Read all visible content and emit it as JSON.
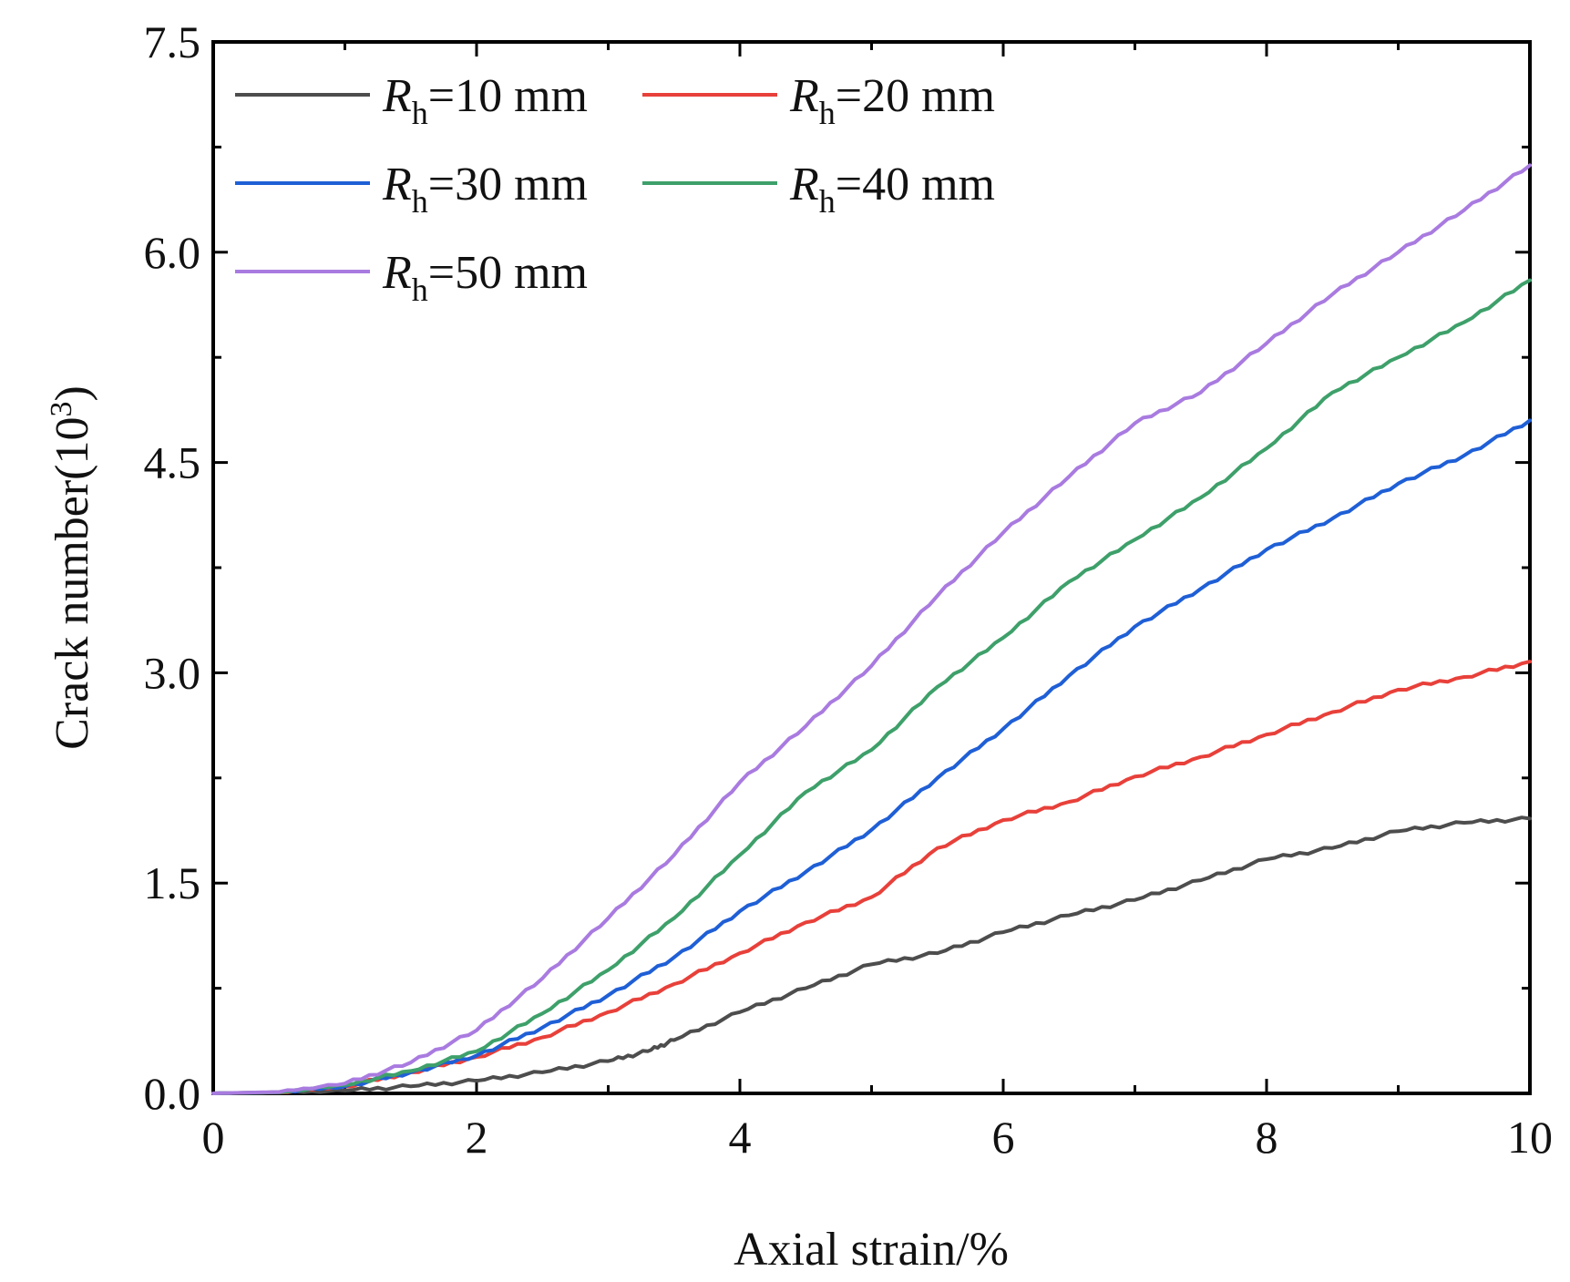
{
  "chart_data": {
    "type": "line",
    "xlabel": "Axial strain/%",
    "ylabel": {
      "main": "Crack number(10",
      "superscript": "3",
      "close": ")"
    },
    "xlim": [
      0,
      10
    ],
    "ylim": [
      0,
      7.5
    ],
    "xticks": [
      0,
      2,
      4,
      6,
      8,
      10
    ],
    "xtick_labels": [
      "0",
      "2",
      "4",
      "6",
      "8",
      "10"
    ],
    "yticks": [
      0,
      1.5,
      3.0,
      4.5,
      6.0,
      7.5
    ],
    "ytick_labels": [
      "0.0",
      "1.5",
      "3.0",
      "4.5",
      "6.0",
      "7.5"
    ],
    "legend_position": "top-left",
    "series": [
      {
        "name": "Rh=10 mm",
        "label_symbol": "R",
        "label_sub": "h",
        "label_rest": "=10 mm",
        "color": "#4d4d4d",
        "x": [
          0,
          0.5,
          1.0,
          1.5,
          2.0,
          2.5,
          3.0,
          3.3,
          3.5,
          4.0,
          4.5,
          5.0,
          5.5,
          6.0,
          6.5,
          7.0,
          7.5,
          8.0,
          8.5,
          9.0,
          9.5,
          10.0
        ],
        "y": [
          0,
          0.005,
          0.02,
          0.05,
          0.09,
          0.15,
          0.23,
          0.3,
          0.38,
          0.58,
          0.75,
          0.92,
          1.0,
          1.15,
          1.27,
          1.38,
          1.52,
          1.67,
          1.75,
          1.87,
          1.93,
          1.96
        ]
      },
      {
        "name": "Rh=20 mm",
        "label_symbol": "R",
        "label_sub": "h",
        "label_rest": "=20 mm",
        "color": "#e8403a",
        "x": [
          0,
          0.5,
          1.0,
          1.5,
          2.0,
          2.5,
          3.0,
          3.5,
          4.0,
          4.5,
          5.0,
          5.5,
          6.0,
          6.5,
          7.0,
          7.5,
          8.0,
          8.5,
          9.0,
          9.5,
          10.0
        ],
        "y": [
          0,
          0.008,
          0.05,
          0.15,
          0.26,
          0.4,
          0.58,
          0.78,
          1.0,
          1.22,
          1.4,
          1.75,
          1.95,
          2.08,
          2.26,
          2.4,
          2.56,
          2.72,
          2.88,
          2.97,
          3.08
        ]
      },
      {
        "name": "Rh=30 mm",
        "label_symbol": "R",
        "label_sub": "h",
        "label_rest": "=30 mm",
        "color": "#1f5fd6",
        "x": [
          0,
          0.5,
          1.0,
          1.5,
          2.0,
          2.5,
          3.0,
          3.5,
          4.0,
          4.5,
          5.0,
          5.5,
          6.0,
          6.5,
          7.0,
          7.5,
          8.0,
          8.5,
          9.0,
          9.5,
          10.0
        ],
        "y": [
          0,
          0.008,
          0.05,
          0.15,
          0.27,
          0.47,
          0.7,
          0.97,
          1.3,
          1.58,
          1.88,
          2.25,
          2.6,
          2.98,
          3.33,
          3.6,
          3.88,
          4.1,
          4.35,
          4.55,
          4.8
        ]
      },
      {
        "name": "Rh=40 mm",
        "label_symbol": "R",
        "label_sub": "h",
        "label_rest": "=40 mm",
        "color": "#3ea06a",
        "x": [
          0,
          0.5,
          1.0,
          1.5,
          2.0,
          2.5,
          3.0,
          3.5,
          4.0,
          4.5,
          5.0,
          5.5,
          6.0,
          6.5,
          7.0,
          7.5,
          8.0,
          8.5,
          9.0,
          9.5,
          10.0
        ],
        "y": [
          0,
          0.008,
          0.06,
          0.16,
          0.3,
          0.57,
          0.88,
          1.25,
          1.7,
          2.15,
          2.45,
          2.9,
          3.25,
          3.65,
          3.95,
          4.25,
          4.6,
          5.0,
          5.25,
          5.5,
          5.8
        ]
      },
      {
        "name": "Rh=50 mm",
        "label_symbol": "R",
        "label_sub": "h",
        "label_rest": "=50 mm",
        "color": "#a97be0",
        "x": [
          0,
          0.5,
          1.0,
          1.5,
          2.0,
          2.5,
          3.0,
          3.5,
          4.0,
          4.5,
          5.0,
          5.5,
          6.0,
          6.5,
          7.0,
          7.5,
          8.0,
          8.5,
          9.0,
          9.5,
          10.0
        ],
        "y": [
          0,
          0.01,
          0.07,
          0.22,
          0.45,
          0.82,
          1.25,
          1.7,
          2.22,
          2.62,
          3.05,
          3.55,
          4.0,
          4.4,
          4.78,
          5.0,
          5.35,
          5.7,
          6.0,
          6.3,
          6.62
        ]
      }
    ]
  }
}
